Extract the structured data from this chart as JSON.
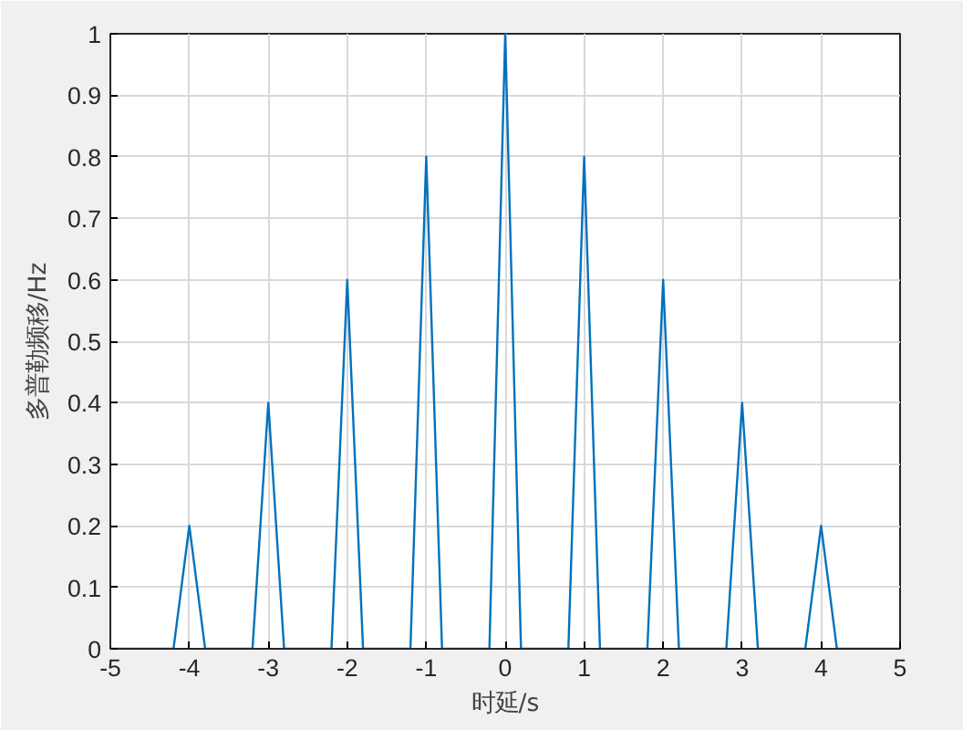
{
  "chart_data": {
    "type": "line",
    "xlabel": "时延/s",
    "ylabel": "多普勒频移/Hz",
    "x": [
      -5,
      -4.2,
      -4,
      -3.8,
      -3.2,
      -3,
      -2.8,
      -2.2,
      -2,
      -1.8,
      -1.2,
      -1,
      -0.8,
      -0.2,
      0,
      0.2,
      0.8,
      1,
      1.2,
      1.8,
      2,
      2.2,
      2.8,
      3,
      3.2,
      3.8,
      4,
      4.2,
      5
    ],
    "series": [
      {
        "color": "#0072bd",
        "values": [
          0,
          0,
          0.2,
          0,
          0,
          0.4,
          0,
          0,
          0.6,
          0,
          0,
          0.8,
          0,
          0,
          1,
          0,
          0,
          0.8,
          0,
          0,
          0.6,
          0,
          0,
          0.4,
          0,
          0,
          0.2,
          0,
          0
        ]
      }
    ],
    "xlim": [
      -5,
      5
    ],
    "ylim": [
      0,
      1
    ],
    "xticks": [
      -5,
      -4,
      -3,
      -2,
      -1,
      0,
      1,
      2,
      3,
      4,
      5
    ],
    "yticks": [
      0,
      0.1,
      0.2,
      0.3,
      0.4,
      0.5,
      0.6,
      0.7,
      0.8,
      0.9,
      1
    ],
    "grid": true,
    "marker": "none",
    "line_style": "solid"
  }
}
